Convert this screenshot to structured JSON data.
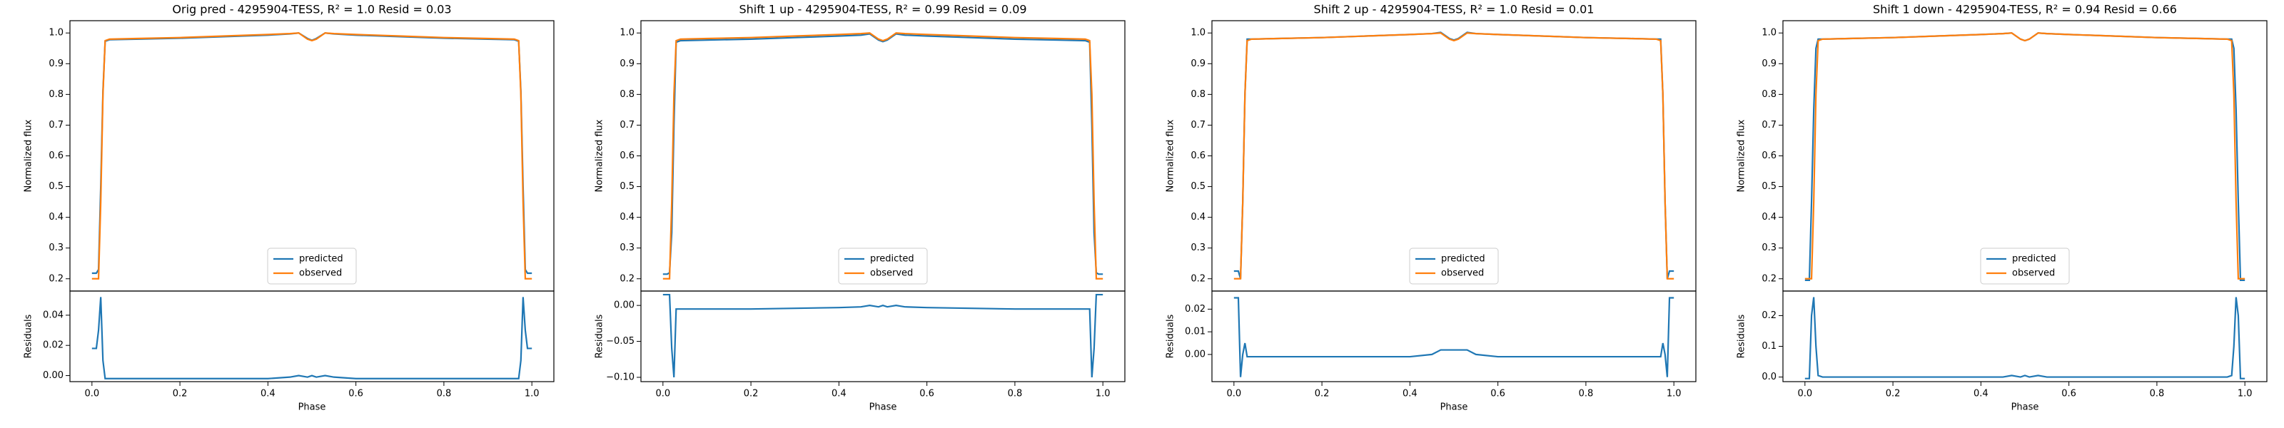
{
  "chart_data": [
    {
      "type": "line",
      "title": "Orig pred - 4295904-TESS, R² = 1.0 Resid = 0.03",
      "ylabel": "Normalized flux",
      "legend": "lower center",
      "x": [
        0,
        0.01,
        0.015,
        0.02,
        0.025,
        0.03,
        0.04,
        0.1,
        0.2,
        0.3,
        0.4,
        0.45,
        0.47,
        0.49,
        0.5,
        0.51,
        0.53,
        0.55,
        0.6,
        0.7,
        0.8,
        0.9,
        0.96,
        0.97,
        0.975,
        0.98,
        0.985,
        0.99,
        1.0
      ],
      "series": [
        {
          "name": "predicted",
          "color": "#1f77b4",
          "values": [
            0.218,
            0.218,
            0.23,
            0.5,
            0.81,
            0.973,
            0.978,
            0.98,
            0.983,
            0.988,
            0.993,
            0.997,
            1.0,
            0.982,
            0.976,
            0.982,
            1.0,
            0.997,
            0.993,
            0.988,
            0.983,
            0.98,
            0.978,
            0.973,
            0.81,
            0.5,
            0.23,
            0.218,
            0.218
          ]
        },
        {
          "name": "observed",
          "color": "#ff7f0e",
          "values": [
            0.2,
            0.2,
            0.2,
            0.45,
            0.8,
            0.975,
            0.98,
            0.982,
            0.985,
            0.99,
            0.995,
            0.998,
            1.0,
            0.98,
            0.975,
            0.98,
            1.0,
            0.998,
            0.995,
            0.99,
            0.985,
            0.982,
            0.98,
            0.975,
            0.8,
            0.45,
            0.2,
            0.2,
            0.2
          ]
        }
      ],
      "xlim": [
        -0.05,
        1.05
      ],
      "ylim": [
        0.16,
        1.04
      ],
      "yticks": [
        {
          "value": 0.2,
          "label": "0.2"
        },
        {
          "value": 0.3,
          "label": "0.3"
        },
        {
          "value": 0.4,
          "label": "0.4"
        },
        {
          "value": 0.5,
          "label": "0.5"
        },
        {
          "value": 0.6,
          "label": "0.6"
        },
        {
          "value": 0.7,
          "label": "0.7"
        },
        {
          "value": 0.8,
          "label": "0.8"
        },
        {
          "value": 0.9,
          "label": "0.9"
        },
        {
          "value": 1.0,
          "label": "1.0"
        }
      ]
    },
    {
      "type": "line",
      "ylabel": "Residuals",
      "xlabel": "Phase",
      "x": [
        0,
        0.01,
        0.015,
        0.02,
        0.025,
        0.03,
        0.04,
        0.1,
        0.2,
        0.3,
        0.4,
        0.45,
        0.47,
        0.49,
        0.5,
        0.51,
        0.53,
        0.55,
        0.6,
        0.7,
        0.8,
        0.9,
        0.96,
        0.97,
        0.975,
        0.98,
        0.985,
        0.99,
        1.0
      ],
      "series": [
        {
          "color": "#1f77b4",
          "values": [
            0.018,
            0.018,
            0.03,
            0.052,
            0.01,
            -0.002,
            -0.002,
            -0.002,
            -0.002,
            -0.002,
            -0.002,
            -0.001,
            0.0,
            -0.001,
            0.0,
            -0.001,
            0.0,
            -0.001,
            -0.002,
            -0.002,
            -0.002,
            -0.002,
            -0.002,
            -0.002,
            0.01,
            0.052,
            0.03,
            0.018,
            0.018
          ]
        }
      ],
      "xlim": [
        -0.05,
        1.05
      ],
      "ylim": [
        -0.004,
        0.056
      ],
      "xticks": [
        {
          "value": 0,
          "label": "0.0"
        },
        {
          "value": 0.2,
          "label": "0.2"
        },
        {
          "value": 0.4,
          "label": "0.4"
        },
        {
          "value": 0.6,
          "label": "0.6"
        },
        {
          "value": 0.8,
          "label": "0.8"
        },
        {
          "value": 1.0,
          "label": "1.0"
        }
      ],
      "yticks": [
        {
          "value": 0,
          "label": "0.00"
        },
        {
          "value": 0.02,
          "label": "0.02"
        },
        {
          "value": 0.04,
          "label": "0.04"
        }
      ]
    },
    {
      "type": "line",
      "title": "Shift 1 up - 4295904-TESS, R² = 0.99 Resid = 0.09",
      "ylabel": "Normalized flux",
      "legend": "lower center",
      "x": [
        0,
        0.01,
        0.015,
        0.02,
        0.025,
        0.03,
        0.04,
        0.1,
        0.2,
        0.3,
        0.4,
        0.45,
        0.47,
        0.49,
        0.5,
        0.51,
        0.53,
        0.55,
        0.6,
        0.7,
        0.8,
        0.9,
        0.96,
        0.97,
        0.975,
        0.98,
        0.985,
        0.99,
        1.0
      ],
      "series": [
        {
          "name": "predicted",
          "color": "#1f77b4",
          "values": [
            0.215,
            0.215,
            0.22,
            0.35,
            0.7,
            0.97,
            0.975,
            0.977,
            0.98,
            0.985,
            0.99,
            0.993,
            0.997,
            0.977,
            0.972,
            0.977,
            0.997,
            0.993,
            0.99,
            0.985,
            0.98,
            0.977,
            0.975,
            0.97,
            0.7,
            0.35,
            0.22,
            0.215,
            0.215
          ]
        },
        {
          "name": "observed",
          "color": "#ff7f0e",
          "values": [
            0.2,
            0.2,
            0.2,
            0.45,
            0.8,
            0.975,
            0.98,
            0.982,
            0.985,
            0.99,
            0.995,
            0.998,
            1.0,
            0.98,
            0.975,
            0.98,
            1.0,
            0.998,
            0.995,
            0.99,
            0.985,
            0.982,
            0.98,
            0.975,
            0.8,
            0.45,
            0.2,
            0.2,
            0.2
          ]
        }
      ],
      "xlim": [
        -0.05,
        1.05
      ],
      "ylim": [
        0.16,
        1.04
      ],
      "yticks": [
        {
          "value": 0.2,
          "label": "0.2"
        },
        {
          "value": 0.3,
          "label": "0.3"
        },
        {
          "value": 0.4,
          "label": "0.4"
        },
        {
          "value": 0.5,
          "label": "0.5"
        },
        {
          "value": 0.6,
          "label": "0.6"
        },
        {
          "value": 0.7,
          "label": "0.7"
        },
        {
          "value": 0.8,
          "label": "0.8"
        },
        {
          "value": 0.9,
          "label": "0.9"
        },
        {
          "value": 1.0,
          "label": "1.0"
        }
      ]
    },
    {
      "type": "line",
      "ylabel": "Residuals",
      "xlabel": "Phase",
      "x": [
        0,
        0.01,
        0.015,
        0.02,
        0.025,
        0.03,
        0.04,
        0.1,
        0.2,
        0.3,
        0.4,
        0.45,
        0.47,
        0.49,
        0.5,
        0.51,
        0.53,
        0.55,
        0.6,
        0.7,
        0.8,
        0.9,
        0.96,
        0.97,
        0.975,
        0.98,
        0.985,
        0.99,
        1.0
      ],
      "series": [
        {
          "color": "#1f77b4",
          "values": [
            0.015,
            0.015,
            0.015,
            -0.06,
            -0.1,
            -0.005,
            -0.005,
            -0.005,
            -0.005,
            -0.004,
            -0.003,
            -0.002,
            0.0,
            -0.002,
            0.0,
            -0.002,
            0.0,
            -0.002,
            -0.003,
            -0.004,
            -0.005,
            -0.005,
            -0.005,
            -0.005,
            -0.1,
            -0.06,
            0.015,
            0.015,
            0.015
          ]
        }
      ],
      "xlim": [
        -0.05,
        1.05
      ],
      "ylim": [
        -0.106,
        0.02
      ],
      "xticks": [
        {
          "value": 0,
          "label": "0.0"
        },
        {
          "value": 0.2,
          "label": "0.2"
        },
        {
          "value": 0.4,
          "label": "0.4"
        },
        {
          "value": 0.6,
          "label": "0.6"
        },
        {
          "value": 0.8,
          "label": "0.8"
        },
        {
          "value": 1.0,
          "label": "1.0"
        }
      ],
      "yticks": [
        {
          "value": -0.1,
          "label": "−0.10"
        },
        {
          "value": -0.05,
          "label": "−0.05"
        },
        {
          "value": 0,
          "label": "0.00"
        }
      ]
    },
    {
      "type": "line",
      "title": "Shift 2 up - 4295904-TESS, R² = 1.0 Resid = 0.01",
      "ylabel": "Normalized flux",
      "legend": "lower center",
      "x": [
        0,
        0.01,
        0.015,
        0.02,
        0.025,
        0.03,
        0.04,
        0.1,
        0.2,
        0.3,
        0.4,
        0.45,
        0.47,
        0.49,
        0.5,
        0.51,
        0.53,
        0.55,
        0.6,
        0.7,
        0.8,
        0.9,
        0.96,
        0.97,
        0.975,
        0.98,
        0.985,
        0.99,
        1.0
      ],
      "series": [
        {
          "name": "predicted",
          "color": "#1f77b4",
          "values": [
            0.225,
            0.225,
            0.2,
            0.45,
            0.8,
            0.98,
            0.98,
            0.982,
            0.985,
            0.99,
            0.995,
            0.998,
            1.002,
            0.982,
            0.977,
            0.982,
            1.002,
            0.998,
            0.995,
            0.99,
            0.985,
            0.982,
            0.98,
            0.98,
            0.8,
            0.45,
            0.2,
            0.225,
            0.225
          ]
        },
        {
          "name": "observed",
          "color": "#ff7f0e",
          "values": [
            0.2,
            0.2,
            0.2,
            0.45,
            0.8,
            0.975,
            0.98,
            0.982,
            0.985,
            0.99,
            0.995,
            0.998,
            1.0,
            0.98,
            0.975,
            0.98,
            1.0,
            0.998,
            0.995,
            0.99,
            0.985,
            0.982,
            0.98,
            0.975,
            0.8,
            0.45,
            0.2,
            0.2,
            0.2
          ]
        }
      ],
      "xlim": [
        -0.05,
        1.05
      ],
      "ylim": [
        0.16,
        1.04
      ],
      "yticks": [
        {
          "value": 0.2,
          "label": "0.2"
        },
        {
          "value": 0.3,
          "label": "0.3"
        },
        {
          "value": 0.4,
          "label": "0.4"
        },
        {
          "value": 0.5,
          "label": "0.5"
        },
        {
          "value": 0.6,
          "label": "0.6"
        },
        {
          "value": 0.7,
          "label": "0.7"
        },
        {
          "value": 0.8,
          "label": "0.8"
        },
        {
          "value": 0.9,
          "label": "0.9"
        },
        {
          "value": 1.0,
          "label": "1.0"
        }
      ]
    },
    {
      "type": "line",
      "ylabel": "Residuals",
      "xlabel": "Phase",
      "x": [
        0,
        0.01,
        0.015,
        0.02,
        0.025,
        0.03,
        0.04,
        0.1,
        0.2,
        0.3,
        0.4,
        0.45,
        0.47,
        0.49,
        0.5,
        0.51,
        0.53,
        0.55,
        0.6,
        0.7,
        0.8,
        0.9,
        0.96,
        0.97,
        0.975,
        0.98,
        0.985,
        0.99,
        1.0
      ],
      "series": [
        {
          "color": "#1f77b4",
          "values": [
            0.025,
            0.025,
            -0.01,
            0.0,
            0.005,
            -0.001,
            -0.001,
            -0.001,
            -0.001,
            -0.001,
            -0.001,
            0.0,
            0.002,
            0.002,
            0.002,
            0.002,
            0.002,
            0.0,
            -0.001,
            -0.001,
            -0.001,
            -0.001,
            -0.001,
            -0.001,
            0.005,
            0.0,
            -0.01,
            0.025,
            0.025
          ]
        }
      ],
      "xlim": [
        -0.05,
        1.05
      ],
      "ylim": [
        -0.012,
        0.028
      ],
      "xticks": [
        {
          "value": 0,
          "label": "0.0"
        },
        {
          "value": 0.2,
          "label": "0.2"
        },
        {
          "value": 0.4,
          "label": "0.4"
        },
        {
          "value": 0.6,
          "label": "0.6"
        },
        {
          "value": 0.8,
          "label": "0.8"
        },
        {
          "value": 1.0,
          "label": "1.0"
        }
      ],
      "yticks": [
        {
          "value": 0,
          "label": "0.00"
        },
        {
          "value": 0.01,
          "label": "0.01"
        },
        {
          "value": 0.02,
          "label": "0.02"
        }
      ]
    },
    {
      "type": "line",
      "title": "Shift 1 down - 4295904-TESS, R² = 0.94 Resid = 0.66",
      "ylabel": "Normalized flux",
      "legend": "lower center",
      "x": [
        0,
        0.01,
        0.015,
        0.02,
        0.025,
        0.03,
        0.04,
        0.1,
        0.2,
        0.3,
        0.4,
        0.45,
        0.47,
        0.49,
        0.5,
        0.51,
        0.53,
        0.55,
        0.6,
        0.7,
        0.8,
        0.9,
        0.96,
        0.97,
        0.975,
        0.98,
        0.985,
        0.99,
        1.0
      ],
      "series": [
        {
          "name": "predicted",
          "color": "#1f77b4",
          "values": [
            0.195,
            0.195,
            0.45,
            0.75,
            0.95,
            0.98,
            0.98,
            0.982,
            0.985,
            0.99,
            0.995,
            0.998,
            1.0,
            0.98,
            0.975,
            0.98,
            1.0,
            0.998,
            0.995,
            0.99,
            0.985,
            0.982,
            0.98,
            0.98,
            0.95,
            0.75,
            0.45,
            0.195,
            0.195
          ]
        },
        {
          "name": "observed",
          "color": "#ff7f0e",
          "values": [
            0.2,
            0.2,
            0.2,
            0.45,
            0.8,
            0.975,
            0.98,
            0.982,
            0.985,
            0.99,
            0.995,
            0.998,
            1.0,
            0.98,
            0.975,
            0.98,
            1.0,
            0.998,
            0.995,
            0.99,
            0.985,
            0.982,
            0.98,
            0.975,
            0.8,
            0.45,
            0.2,
            0.2,
            0.2
          ]
        }
      ],
      "xlim": [
        -0.05,
        1.05
      ],
      "ylim": [
        0.16,
        1.04
      ],
      "yticks": [
        {
          "value": 0.2,
          "label": "0.2"
        },
        {
          "value": 0.3,
          "label": "0.3"
        },
        {
          "value": 0.4,
          "label": "0.4"
        },
        {
          "value": 0.5,
          "label": "0.5"
        },
        {
          "value": 0.6,
          "label": "0.6"
        },
        {
          "value": 0.7,
          "label": "0.7"
        },
        {
          "value": 0.8,
          "label": "0.8"
        },
        {
          "value": 0.9,
          "label": "0.9"
        },
        {
          "value": 1.0,
          "label": "1.0"
        }
      ]
    },
    {
      "type": "line",
      "ylabel": "Residuals",
      "xlabel": "Phase",
      "x": [
        0,
        0.01,
        0.015,
        0.02,
        0.025,
        0.03,
        0.04,
        0.1,
        0.2,
        0.3,
        0.4,
        0.45,
        0.47,
        0.49,
        0.5,
        0.51,
        0.53,
        0.55,
        0.6,
        0.7,
        0.8,
        0.9,
        0.96,
        0.97,
        0.975,
        0.98,
        0.985,
        0.99,
        1.0
      ],
      "series": [
        {
          "color": "#1f77b4",
          "values": [
            -0.005,
            -0.005,
            0.2,
            0.26,
            0.1,
            0.005,
            0,
            0,
            0,
            0,
            0,
            0,
            0.005,
            0,
            0.005,
            0,
            0.005,
            0,
            0,
            0,
            0,
            0,
            0,
            0.005,
            0.1,
            0.26,
            0.2,
            -0.005,
            -0.005
          ]
        }
      ],
      "xlim": [
        -0.05,
        1.05
      ],
      "ylim": [
        -0.015,
        0.28
      ],
      "xticks": [
        {
          "value": 0,
          "label": "0.0"
        },
        {
          "value": 0.2,
          "label": "0.2"
        },
        {
          "value": 0.4,
          "label": "0.4"
        },
        {
          "value": 0.6,
          "label": "0.6"
        },
        {
          "value": 0.8,
          "label": "0.8"
        },
        {
          "value": 1.0,
          "label": "1.0"
        }
      ],
      "yticks": [
        {
          "value": 0,
          "label": "0.0"
        },
        {
          "value": 0.1,
          "label": "0.1"
        },
        {
          "value": 0.2,
          "label": "0.2"
        }
      ]
    }
  ]
}
